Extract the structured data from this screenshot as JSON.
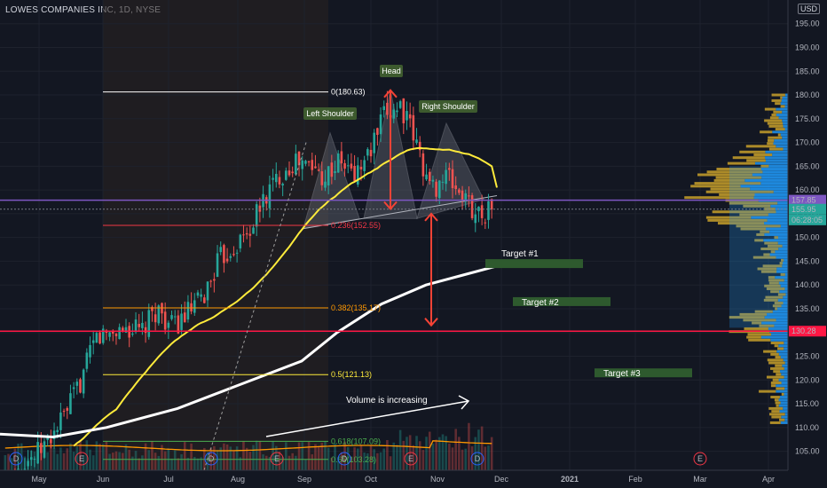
{
  "header": {
    "title": "LOWES COMPANIES INC, 1D, NYSE",
    "currency": "USD"
  },
  "colors": {
    "background": "#131722",
    "up": "#26a69a",
    "down": "#ef5350",
    "ma50": "#ffeb3b",
    "ma200": "#ffffff",
    "volume_ma": "#ff9800",
    "h_line_purple": "#7e57c2",
    "h_line_red": "#ff1744",
    "target_box": "#2e5a2e",
    "vp_up": "#2196f3",
    "vp_down": "#c8a02a"
  },
  "chart_data": {
    "type": "candlestick",
    "symbol": "LOWES COMPANIES INC",
    "interval": "1D",
    "exchange": "NYSE",
    "y_axis": {
      "range": [
        101,
        197
      ],
      "ticks": [
        105.0,
        110.0,
        115.0,
        120.0,
        125.0,
        130.0,
        135.0,
        140.0,
        145.0,
        150.0,
        155.0,
        160.0,
        165.0,
        170.0,
        175.0,
        180.0,
        185.0,
        190.0,
        195.0
      ],
      "tick_labels": [
        "105.00",
        "110.00",
        "115.00",
        "120.00",
        "125.00",
        "130.00",
        "135.00",
        "140.00",
        "145.00",
        "150.00",
        "155.00",
        "160.00",
        "165.00",
        "170.00",
        "175.00",
        "180.00",
        "185.00",
        "190.00",
        "195.00"
      ]
    },
    "x_axis": {
      "tick_labels": [
        "May",
        "Jun",
        "Jul",
        "Aug",
        "Sep",
        "Oct",
        "Nov",
        "Dec",
        "2021",
        "Feb",
        "Mar",
        "Apr"
      ]
    },
    "price_labels": [
      {
        "text": "157.85",
        "value": 157.85,
        "color": "#7e57c2"
      },
      {
        "text": "155.95",
        "value": 155.95,
        "color": "#26a69a"
      },
      {
        "text": "06:28:05",
        "value": 153.7,
        "color": "#26a69a"
      },
      {
        "text": "130.28",
        "value": 130.28,
        "color": "#ff1744"
      }
    ],
    "close_series": [
      {
        "date": "2020-04-20",
        "close": 97
      },
      {
        "date": "2020-04-27",
        "close": 103
      },
      {
        "date": "2020-05-04",
        "close": 104
      },
      {
        "date": "2020-05-11",
        "close": 108
      },
      {
        "date": "2020-05-18",
        "close": 113
      },
      {
        "date": "2020-05-25",
        "close": 120
      },
      {
        "date": "2020-06-01",
        "close": 129
      },
      {
        "date": "2020-06-08",
        "close": 130
      },
      {
        "date": "2020-06-15",
        "close": 131
      },
      {
        "date": "2020-06-22",
        "close": 130
      },
      {
        "date": "2020-06-29",
        "close": 135
      },
      {
        "date": "2020-07-06",
        "close": 131
      },
      {
        "date": "2020-07-13",
        "close": 134
      },
      {
        "date": "2020-07-20",
        "close": 137
      },
      {
        "date": "2020-07-27",
        "close": 145
      },
      {
        "date": "2020-08-03",
        "close": 148
      },
      {
        "date": "2020-08-10",
        "close": 151
      },
      {
        "date": "2020-08-17",
        "close": 158
      },
      {
        "date": "2020-08-24",
        "close": 163
      },
      {
        "date": "2020-08-31",
        "close": 166
      },
      {
        "date": "2020-09-07",
        "close": 165
      },
      {
        "date": "2020-09-14",
        "close": 163
      },
      {
        "date": "2020-09-21",
        "close": 166
      },
      {
        "date": "2020-09-28",
        "close": 163
      },
      {
        "date": "2020-10-05",
        "close": 168
      },
      {
        "date": "2020-10-12",
        "close": 176
      },
      {
        "date": "2020-10-19",
        "close": 178
      },
      {
        "date": "2020-10-26",
        "close": 170
      },
      {
        "date": "2020-11-02",
        "close": 160
      },
      {
        "date": "2020-11-09",
        "close": 163
      },
      {
        "date": "2020-11-16",
        "close": 159
      },
      {
        "date": "2020-11-23",
        "close": 155
      },
      {
        "date": "2020-11-30",
        "close": 156
      }
    ],
    "fibonacci": [
      {
        "label": "0(180.63)",
        "value": 180.63,
        "color": "#ffffff"
      },
      {
        "label": "0.236(152.55)",
        "value": 152.55,
        "color": "#f23645"
      },
      {
        "label": "0.382(135.17)",
        "value": 135.17,
        "color": "#ff9800"
      },
      {
        "label": "0.5(121.13)",
        "value": 121.13,
        "color": "#ffeb3b"
      },
      {
        "label": "0.618(107.09)",
        "value": 107.09,
        "color": "#4caf50"
      },
      {
        "label": "0.65(103.28)",
        "value": 103.28,
        "color": "#4caf50"
      }
    ],
    "annotations": {
      "left_shoulder": "Left Shoulder",
      "head": "Head",
      "right_shoulder": "Right Shoulder",
      "volume_note": "Volume is increasing"
    },
    "targets": [
      "Target #1",
      "Target #2",
      "Target #3"
    ],
    "events": [
      "D",
      "E",
      "D",
      "E",
      "D",
      "E",
      "D",
      "E",
      "E"
    ]
  }
}
